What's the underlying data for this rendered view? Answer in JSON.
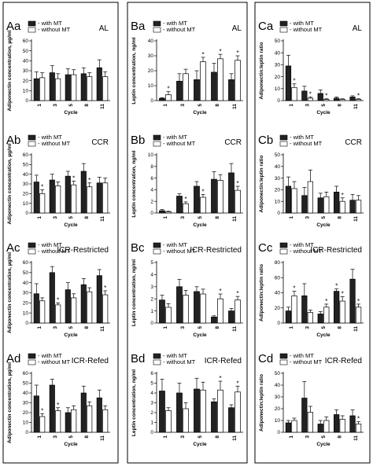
{
  "legend": {
    "with": "- with MT",
    "without": "- without MT"
  },
  "x_label": "Cycle",
  "chart_data": [
    {
      "id": "Aa",
      "type": "bar",
      "condition": "AL",
      "ylabel": "Adiponectin concentration, µg/ml",
      "ylim": [
        0,
        60
      ],
      "yticks": [
        0,
        10,
        20,
        30,
        40,
        50,
        60
      ],
      "categories": [
        "1",
        "3",
        "5",
        "8",
        "11"
      ],
      "series": [
        {
          "name": "- with MT",
          "values": [
            22,
            28,
            26,
            27,
            33
          ],
          "errors": [
            7,
            7,
            6,
            6,
            8
          ]
        },
        {
          "name": "- without MT",
          "values": [
            23,
            22,
            26,
            24,
            24
          ],
          "errors": [
            5,
            5,
            5,
            4,
            5
          ]
        }
      ],
      "stars_with": [],
      "stars_without": []
    },
    {
      "id": "Ab",
      "type": "bar",
      "condition": "CCR",
      "ylabel": "Adiponectin concentration, µg/ml",
      "ylim": [
        0,
        60
      ],
      "yticks": [
        0,
        10,
        20,
        30,
        40,
        50,
        60
      ],
      "categories": [
        "1",
        "3",
        "5",
        "8",
        "11"
      ],
      "series": [
        {
          "name": "- with MT",
          "values": [
            32,
            34,
            38,
            43,
            31
          ],
          "errors": [
            7,
            6,
            5,
            8,
            6
          ]
        },
        {
          "name": "- without MT",
          "values": [
            20,
            28,
            29,
            27,
            31
          ],
          "errors": [
            4,
            4,
            4,
            4,
            5
          ]
        }
      ],
      "stars_with": [],
      "stars_without": [
        0,
        2,
        3
      ]
    },
    {
      "id": "Ac",
      "type": "bar",
      "condition": "ICR-Restricted",
      "ylabel": "Adiponectin concentration, µg/ml",
      "ylim": [
        0,
        60
      ],
      "yticks": [
        0,
        10,
        20,
        30,
        40,
        50,
        60
      ],
      "categories": [
        "1",
        "3",
        "5",
        "8",
        "11"
      ],
      "series": [
        {
          "name": "- with MT",
          "values": [
            29,
            50,
            33,
            38,
            47
          ],
          "errors": [
            10,
            6,
            7,
            6,
            6
          ]
        },
        {
          "name": "- without MT",
          "values": [
            22,
            18,
            25,
            31,
            28
          ],
          "errors": [
            3,
            2,
            4,
            4,
            4
          ]
        }
      ],
      "stars_with": [],
      "stars_without": [
        1,
        4
      ]
    },
    {
      "id": "Ad",
      "type": "bar",
      "condition": "ICR-Refed",
      "ylabel": "Adiponectin concentration, µg/ml",
      "ylim": [
        0,
        60
      ],
      "yticks": [
        0,
        10,
        20,
        30,
        40,
        50,
        60
      ],
      "categories": [
        "1",
        "3",
        "5",
        "8",
        "11"
      ],
      "series": [
        {
          "name": "- with MT",
          "values": [
            37,
            48,
            20,
            40,
            35
          ],
          "errors": [
            11,
            6,
            5,
            7,
            8
          ]
        },
        {
          "name": "- without MT",
          "values": [
            16,
            22,
            23,
            27,
            23
          ],
          "errors": [
            3,
            3,
            4,
            4,
            4
          ]
        }
      ],
      "stars_with": [],
      "stars_without": [
        0,
        1
      ]
    },
    {
      "id": "Ba",
      "type": "bar",
      "condition": "AL",
      "ylabel": "Leptin concentration, ng/ml",
      "ylim": [
        0,
        40
      ],
      "yticks": [
        0,
        10,
        20,
        30,
        40
      ],
      "categories": [
        "1",
        "3",
        "5",
        "8",
        "11"
      ],
      "series": [
        {
          "name": "- with MT",
          "values": [
            1.5,
            13,
            14,
            19,
            14
          ],
          "errors": [
            0.5,
            5,
            6,
            6,
            4
          ]
        },
        {
          "name": "- without MT",
          "values": [
            4,
            18,
            26,
            28,
            27
          ],
          "errors": [
            2,
            3,
            3,
            3,
            3
          ]
        }
      ],
      "stars_with": [],
      "stars_without": [
        0,
        2,
        3,
        4
      ]
    },
    {
      "id": "Bb",
      "type": "bar",
      "condition": "CCR",
      "ylabel": "Leptin concentration, ng/ml",
      "ylim": [
        0,
        10
      ],
      "yticks": [
        0,
        2,
        4,
        6,
        8,
        10
      ],
      "categories": [
        "1",
        "3",
        "5",
        "8",
        "11"
      ],
      "series": [
        {
          "name": "- with MT",
          "values": [
            0.4,
            2.9,
            4.6,
            5.8,
            6.9
          ],
          "errors": [
            0.2,
            0.4,
            0.8,
            1.3,
            1.6
          ]
        },
        {
          "name": "- without MT",
          "values": [
            0.2,
            1.6,
            2.7,
            5.6,
            3.9
          ],
          "errors": [
            0.1,
            0.3,
            0.5,
            1.0,
            0.7
          ]
        }
      ],
      "stars_with": [],
      "stars_without": [
        1,
        2,
        4
      ]
    },
    {
      "id": "Bc",
      "type": "bar",
      "condition": "ICR-Restricted",
      "ylabel": "Leptin concentration, ng/ml",
      "ylim": [
        0,
        5
      ],
      "yticks": [
        0,
        1,
        2,
        3,
        4,
        5
      ],
      "categories": [
        "1",
        "3",
        "5",
        "8",
        "11"
      ],
      "series": [
        {
          "name": "- with MT",
          "values": [
            1.9,
            3.0,
            2.6,
            0.5,
            1.0
          ],
          "errors": [
            0.4,
            0.6,
            0.4,
            0.1,
            0.2
          ]
        },
        {
          "name": "- without MT",
          "values": [
            1.3,
            2.3,
            2.4,
            2.0,
            1.9
          ],
          "errors": [
            0.3,
            0.4,
            0.4,
            0.4,
            0.3
          ]
        }
      ],
      "stars_with": [],
      "stars_without": [
        3,
        4
      ]
    },
    {
      "id": "Bd",
      "type": "bar",
      "condition": "ICR-Refed",
      "ylabel": "Leptin concentration, ng/ml",
      "ylim": [
        0,
        6
      ],
      "yticks": [
        0,
        1,
        2,
        3,
        4,
        5,
        6
      ],
      "categories": [
        "1",
        "3",
        "5",
        "8",
        "11"
      ],
      "series": [
        {
          "name": "- with MT",
          "values": [
            4.2,
            4.0,
            4.4,
            3.1,
            2.5
          ],
          "errors": [
            1.2,
            1.0,
            1.1,
            0.3,
            0.3
          ]
        },
        {
          "name": "- without MT",
          "values": [
            2.2,
            2.4,
            4.3,
            4.3,
            4.1
          ],
          "errors": [
            0.3,
            0.6,
            0.8,
            0.9,
            0.6
          ]
        }
      ],
      "stars_with": [],
      "stars_without": [
        3,
        4
      ]
    },
    {
      "id": "Ca",
      "type": "bar",
      "condition": "AL",
      "ylabel": "Adiponectin:leptin ratio",
      "ylim": [
        0,
        50
      ],
      "yticks": [
        0,
        10,
        20,
        30,
        40,
        50
      ],
      "categories": [
        "1",
        "3",
        "5",
        "8",
        "11"
      ],
      "series": [
        {
          "name": "- with MT",
          "values": [
            29,
            8,
            6,
            2,
            3
          ],
          "errors": [
            9,
            4,
            3,
            1,
            1
          ]
        },
        {
          "name": "- without MT",
          "values": [
            11,
            2,
            1,
            1,
            1
          ],
          "errors": [
            3,
            1,
            0.5,
            0.5,
            0.5
          ]
        }
      ],
      "stars_with": [],
      "stars_without": [
        0,
        1,
        2,
        4
      ]
    },
    {
      "id": "Cb",
      "type": "bar",
      "condition": "CCR",
      "ylabel": "Adiponectin:leptin ratio",
      "ylim": [
        0,
        50
      ],
      "yticks": [
        0,
        10,
        20,
        30,
        40,
        50
      ],
      "categories": [
        "1",
        "3",
        "5",
        "8",
        "11"
      ],
      "series": [
        {
          "name": "- with MT",
          "values": [
            23,
            15,
            13,
            18,
            11
          ],
          "errors": [
            8,
            7,
            4,
            5,
            5
          ]
        },
        {
          "name": "- without MT",
          "values": [
            21,
            27,
            14,
            10,
            11
          ],
          "errors": [
            6,
            10,
            4,
            3,
            4
          ]
        }
      ],
      "stars_with": [],
      "stars_without": [
        3
      ]
    },
    {
      "id": "Cc",
      "type": "bar",
      "condition": "ICR-Restricted",
      "ylabel": "Adiponectin:leptin ratio",
      "ylim": [
        0,
        80
      ],
      "yticks": [
        0,
        20,
        40,
        60,
        80
      ],
      "categories": [
        "1",
        "3",
        "5",
        "8",
        "11"
      ],
      "series": [
        {
          "name": "- with MT",
          "values": [
            16,
            36,
            12,
            42,
            58
          ],
          "errors": [
            5,
            16,
            3,
            3,
            13
          ]
        },
        {
          "name": "- without MT",
          "values": [
            36,
            14,
            21,
            29,
            21
          ],
          "errors": [
            6,
            3,
            4,
            6,
            4
          ]
        }
      ],
      "stars_with": [
        3
      ],
      "stars_without": [
        0,
        2,
        3,
        4
      ]
    },
    {
      "id": "Cd",
      "type": "bar",
      "condition": "ICR-Refed",
      "ylabel": "Adiponectin:leptin ratio",
      "ylim": [
        0,
        50
      ],
      "yticks": [
        0,
        10,
        20,
        30,
        40,
        50
      ],
      "categories": [
        "1",
        "3",
        "5",
        "8",
        "11"
      ],
      "series": [
        {
          "name": "- with MT",
          "values": [
            8,
            29,
            7,
            15,
            14
          ],
          "errors": [
            2,
            14,
            3,
            4,
            5
          ]
        },
        {
          "name": "- without MT",
          "values": [
            10,
            17,
            10,
            11,
            7
          ],
          "errors": [
            2,
            5,
            3,
            3,
            2
          ]
        }
      ],
      "stars_with": [],
      "stars_without": [
        4
      ]
    }
  ]
}
